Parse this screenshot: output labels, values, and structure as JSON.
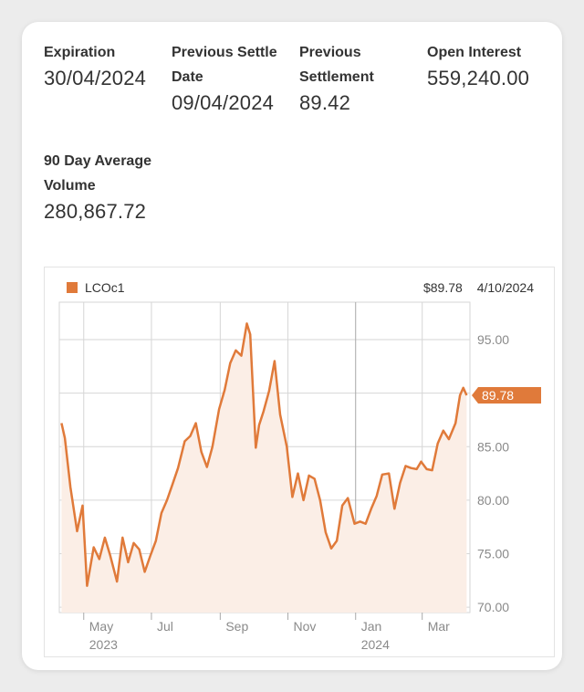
{
  "stats": {
    "expiration": {
      "label": "Expiration",
      "value": "30/04/2024"
    },
    "previous_settle_date": {
      "label_line1": "Previous Settle",
      "label_line2": "Date",
      "value": "09/04/2024"
    },
    "previous_settlement": {
      "label_line1": "Previous",
      "label_line2": "Settlement",
      "value": "89.42"
    },
    "open_interest": {
      "label": "Open Interest",
      "value": "559,240.00"
    },
    "avg_volume": {
      "label_line1": "90 Day Average",
      "label_line2": "Volume",
      "value": "280,867.72"
    }
  },
  "chart_header": {
    "legend_label": "LCOc1",
    "last_price": "$89.78",
    "date": "4/10/2024"
  },
  "colors": {
    "accent": "#e07a3a",
    "fill": "#fbeee6",
    "grid": "#d6d6d6",
    "text": "#333333"
  },
  "chart_data": {
    "type": "area",
    "series": [
      {
        "name": "LCOc1",
        "x": [
          "2023-04-11",
          "2023-04-14",
          "2023-04-19",
          "2023-04-25",
          "2023-04-30",
          "2023-05-04",
          "2023-05-10",
          "2023-05-15",
          "2023-05-20",
          "2023-05-25",
          "2023-05-31",
          "2023-06-05",
          "2023-06-10",
          "2023-06-15",
          "2023-06-20",
          "2023-06-25",
          "2023-06-30",
          "2023-07-05",
          "2023-07-10",
          "2023-07-15",
          "2023-07-20",
          "2023-07-25",
          "2023-07-31",
          "2023-08-05",
          "2023-08-10",
          "2023-08-15",
          "2023-08-20",
          "2023-08-25",
          "2023-08-31",
          "2023-09-05",
          "2023-09-10",
          "2023-09-15",
          "2023-09-20",
          "2023-09-25",
          "2023-09-28",
          "2023-10-03",
          "2023-10-06",
          "2023-10-10",
          "2023-10-15",
          "2023-10-20",
          "2023-10-25",
          "2023-10-31",
          "2023-11-05",
          "2023-11-10",
          "2023-11-15",
          "2023-11-20",
          "2023-11-25",
          "2023-11-30",
          "2023-12-05",
          "2023-12-10",
          "2023-12-15",
          "2023-12-20",
          "2023-12-25",
          "2023-12-31",
          "2024-01-05",
          "2024-01-10",
          "2024-01-15",
          "2024-01-20",
          "2024-01-25",
          "2024-01-31",
          "2024-02-05",
          "2024-02-10",
          "2024-02-15",
          "2024-02-20",
          "2024-02-25",
          "2024-02-29",
          "2024-03-05",
          "2024-03-10",
          "2024-03-15",
          "2024-03-20",
          "2024-03-25",
          "2024-03-31",
          "2024-04-04",
          "2024-04-07",
          "2024-04-10"
        ],
        "values": [
          87.2,
          85.8,
          81.2,
          77.1,
          79.5,
          72.0,
          75.6,
          74.5,
          76.5,
          74.8,
          72.4,
          76.5,
          74.2,
          76.0,
          75.4,
          73.3,
          74.8,
          76.2,
          78.8,
          80.0,
          81.5,
          83.0,
          85.5,
          86.0,
          87.2,
          84.5,
          83.1,
          85.0,
          88.5,
          90.3,
          92.8,
          94.0,
          93.5,
          96.5,
          95.5,
          84.9,
          87.0,
          88.3,
          90.2,
          93.0,
          88.0,
          85.0,
          80.3,
          82.5,
          80.0,
          82.3,
          82.0,
          80.0,
          77.0,
          75.5,
          76.2,
          79.5,
          80.2,
          77.8,
          78.0,
          77.8,
          79.2,
          80.4,
          82.4,
          82.5,
          79.2,
          81.6,
          83.2,
          83.0,
          82.9,
          83.6,
          82.9,
          82.8,
          85.3,
          86.5,
          85.7,
          87.2,
          89.8,
          90.5,
          89.8
        ]
      }
    ],
    "x_ticks": [
      {
        "label": "May",
        "sub": "2023"
      },
      {
        "label": "Jul",
        "sub": ""
      },
      {
        "label": "Sep",
        "sub": ""
      },
      {
        "label": "Nov",
        "sub": ""
      },
      {
        "label": "Jan",
        "sub": "2024"
      },
      {
        "label": "Mar",
        "sub": ""
      }
    ],
    "y_ticks": [
      "95.00",
      "90.00",
      "85.00",
      "80.00",
      "75.00",
      "70.00"
    ],
    "ylim": [
      69.5,
      98.5
    ],
    "last_value_label": "89.78",
    "grid": true,
    "legend_position": "top-left"
  }
}
